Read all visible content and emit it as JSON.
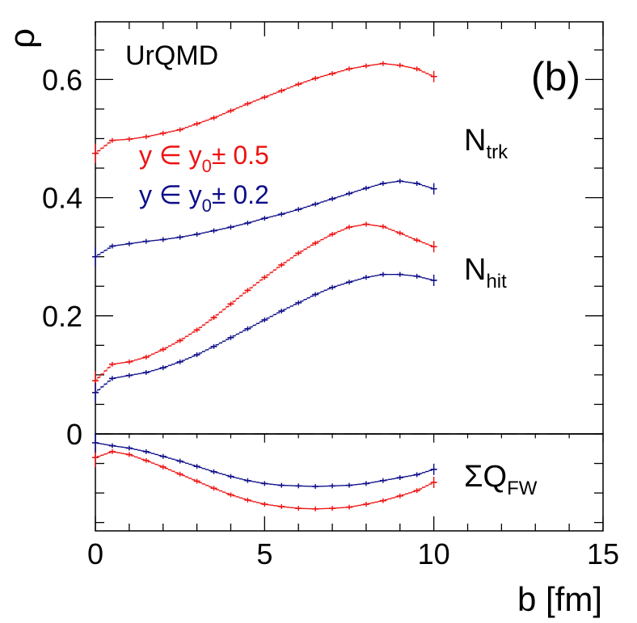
{
  "chart_data": {
    "type": "line",
    "title": "",
    "model_label": "UrQMD",
    "panel_label": "(b)",
    "xlabel": "b  [fm]",
    "ylabel": "ρ",
    "xlim": [
      0,
      15
    ],
    "ylim": [
      -0.16,
      0.7
    ],
    "x_ticks": [
      0,
      5,
      10,
      15
    ],
    "x_tick_labels": [
      "0",
      "5",
      "10",
      "15"
    ],
    "y_ticks": [
      0,
      0.2,
      0.4,
      0.6
    ],
    "y_tick_labels": [
      "0",
      "0.2",
      "0.4",
      "0.6"
    ],
    "zero_line": "dashed",
    "legend": [
      {
        "main": "y ∈ y",
        "sub": "0",
        "rest": "± 0.5",
        "color": "#ee1111"
      },
      {
        "main": "y ∈ y",
        "sub": "0",
        "rest": "± 0.2",
        "color": "#0c0c88"
      }
    ],
    "group_labels": [
      {
        "main": "N",
        "sub": "trk"
      },
      {
        "main": "N",
        "sub": "hit"
      },
      {
        "main": "ΣQ",
        "sub": "FW"
      }
    ],
    "x": [
      0,
      0.5,
      1,
      1.5,
      2,
      2.5,
      3,
      3.5,
      4,
      4.5,
      5,
      5.5,
      6,
      6.5,
      7,
      7.5,
      8,
      8.5,
      9,
      9.5,
      10
    ],
    "series": [
      {
        "name": "N_trk, y ∈ y0 ± 0.5",
        "group": "N_trk",
        "color": "#ee1111",
        "values": [
          0.475,
          0.497,
          0.499,
          0.503,
          0.509,
          0.515,
          0.525,
          0.535,
          0.547,
          0.559,
          0.57,
          0.581,
          0.592,
          0.602,
          0.61,
          0.618,
          0.623,
          0.627,
          0.624,
          0.618,
          0.605
        ]
      },
      {
        "name": "N_trk, y ∈ y0 ± 0.2",
        "group": "N_trk",
        "color": "#0c0c88",
        "values": [
          0.3,
          0.318,
          0.322,
          0.326,
          0.329,
          0.333,
          0.338,
          0.344,
          0.35,
          0.357,
          0.365,
          0.372,
          0.38,
          0.389,
          0.398,
          0.407,
          0.416,
          0.424,
          0.428,
          0.424,
          0.415
        ]
      },
      {
        "name": "N_hit, y ∈ y0 ± 0.5",
        "group": "N_hit",
        "color": "#ee1111",
        "values": [
          0.09,
          0.118,
          0.122,
          0.13,
          0.143,
          0.158,
          0.176,
          0.197,
          0.22,
          0.243,
          0.265,
          0.286,
          0.306,
          0.323,
          0.338,
          0.35,
          0.355,
          0.351,
          0.34,
          0.328,
          0.317
        ]
      },
      {
        "name": "N_hit, y ∈ y0 ± 0.2",
        "group": "N_hit",
        "color": "#0c0c88",
        "values": [
          0.07,
          0.094,
          0.099,
          0.104,
          0.112,
          0.122,
          0.134,
          0.148,
          0.163,
          0.178,
          0.193,
          0.208,
          0.222,
          0.236,
          0.248,
          0.257,
          0.265,
          0.27,
          0.27,
          0.267,
          0.26
        ]
      },
      {
        "name": "ΣQ_FW, y ∈ y0 ± 0.5",
        "group": "ΣQ_FW",
        "color": "#ee1111",
        "values": [
          -0.04,
          -0.03,
          -0.035,
          -0.045,
          -0.056,
          -0.068,
          -0.08,
          -0.092,
          -0.103,
          -0.112,
          -0.119,
          -0.123,
          -0.126,
          -0.127,
          -0.126,
          -0.124,
          -0.119,
          -0.113,
          -0.105,
          -0.096,
          -0.082
        ]
      },
      {
        "name": "ΣQ_FW, y ∈ y0 ± 0.2",
        "group": "ΣQ_FW",
        "color": "#0c0c88",
        "values": [
          -0.015,
          -0.02,
          -0.024,
          -0.03,
          -0.038,
          -0.046,
          -0.055,
          -0.064,
          -0.072,
          -0.079,
          -0.084,
          -0.087,
          -0.088,
          -0.089,
          -0.088,
          -0.087,
          -0.084,
          -0.079,
          -0.074,
          -0.069,
          -0.06
        ]
      }
    ]
  }
}
